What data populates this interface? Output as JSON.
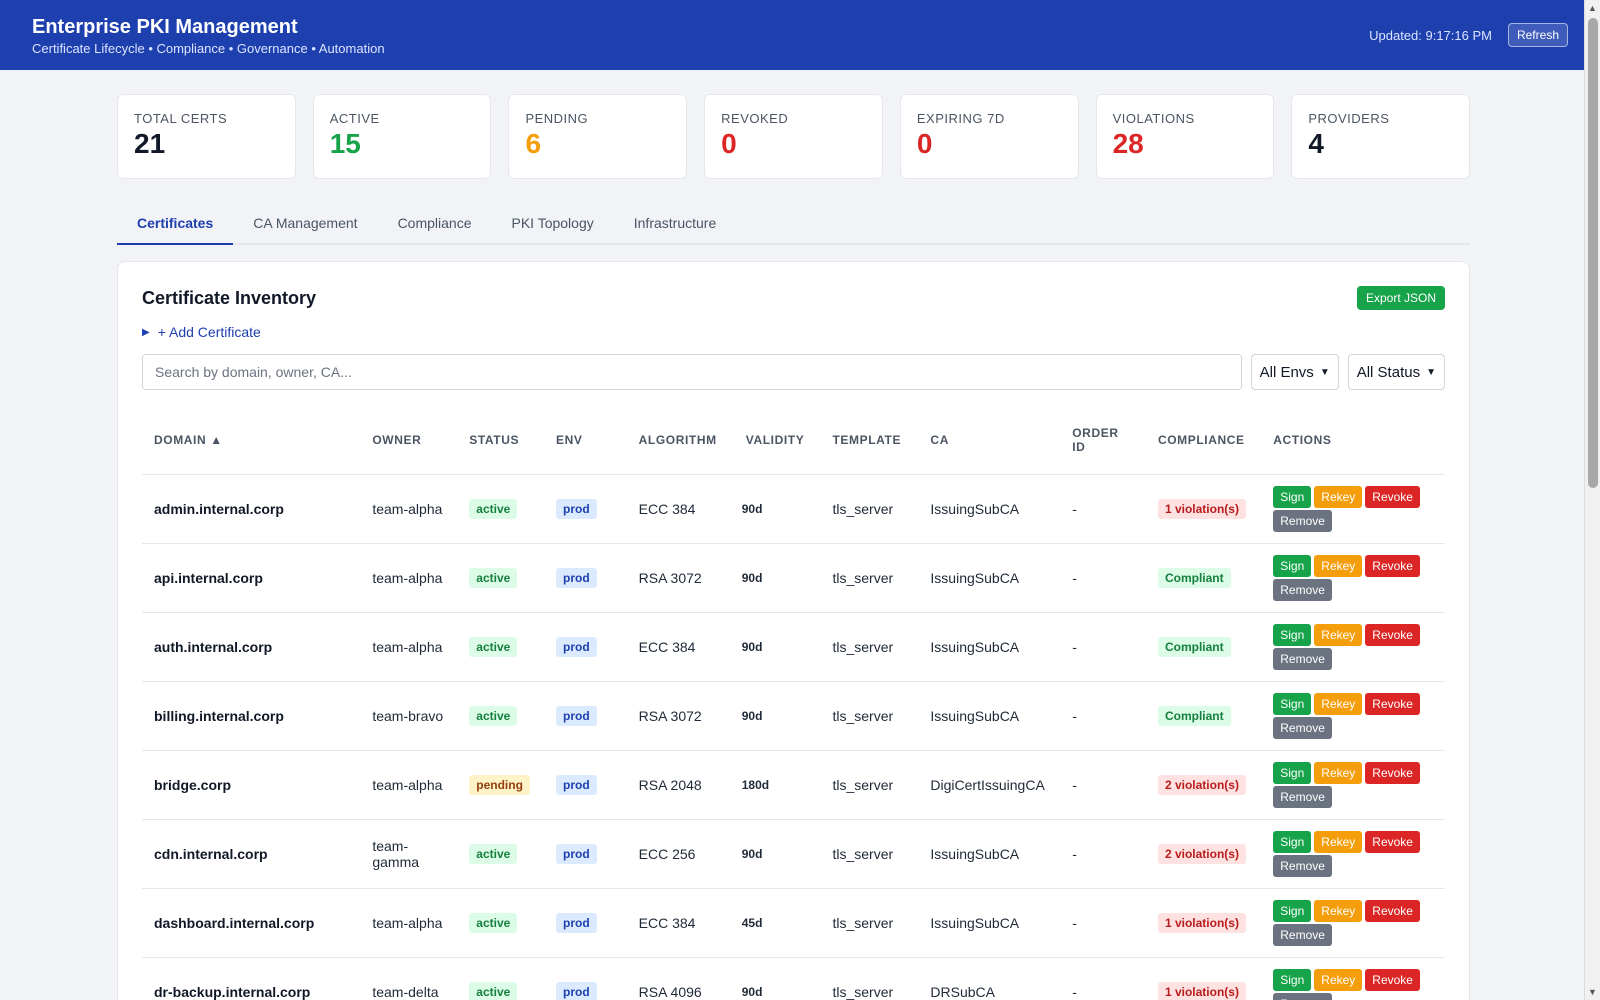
{
  "header": {
    "title": "Enterprise PKI Management",
    "subtitle": "Certificate Lifecycle • Compliance • Governance • Automation",
    "updated": "Updated: 9:17:16 PM",
    "refresh_label": "Refresh"
  },
  "stats": [
    {
      "label": "TOTAL CERTS",
      "value": "21",
      "color": "#111827"
    },
    {
      "label": "ACTIVE",
      "value": "15",
      "color": "#16a34a"
    },
    {
      "label": "PENDING",
      "value": "6",
      "color": "#f59e0b"
    },
    {
      "label": "REVOKED",
      "value": "0",
      "color": "#dc2626"
    },
    {
      "label": "EXPIRING 7D",
      "value": "0",
      "color": "#dc2626"
    },
    {
      "label": "VIOLATIONS",
      "value": "28",
      "color": "#dc2626"
    },
    {
      "label": "PROVIDERS",
      "value": "4",
      "color": "#111827"
    }
  ],
  "tabs": [
    {
      "label": "Certificates",
      "active": true
    },
    {
      "label": "CA Management",
      "active": false
    },
    {
      "label": "Compliance",
      "active": false
    },
    {
      "label": "PKI Topology",
      "active": false
    },
    {
      "label": "Infrastructure",
      "active": false
    }
  ],
  "inventory": {
    "title": "Certificate Inventory",
    "export_label": "Export JSON",
    "add_label": "+ Add Certificate",
    "search_placeholder": "Search by domain, owner, CA...",
    "env_filter": "All Envs",
    "status_filter": "All Status"
  },
  "table": {
    "columns": [
      "DOMAIN ▲",
      "OWNER",
      "STATUS",
      "ENV",
      "ALGORITHM",
      "VALIDITY",
      "TEMPLATE",
      "CA",
      "ORDER ID",
      "COMPLIANCE",
      "ACTIONS"
    ],
    "action_labels": [
      "Sign",
      "Rekey",
      "Revoke",
      "Remove"
    ],
    "rows": [
      {
        "domain": "admin.internal.corp",
        "owner": "team-alpha",
        "status": "active",
        "env": "prod",
        "algorithm": "ECC 384",
        "validity": "90d",
        "template": "tls_server",
        "ca": "IssuingSubCA",
        "order_id": "-",
        "compliance": "1 violation(s)"
      },
      {
        "domain": "api.internal.corp",
        "owner": "team-alpha",
        "status": "active",
        "env": "prod",
        "algorithm": "RSA 3072",
        "validity": "90d",
        "template": "tls_server",
        "ca": "IssuingSubCA",
        "order_id": "-",
        "compliance": "Compliant"
      },
      {
        "domain": "auth.internal.corp",
        "owner": "team-alpha",
        "status": "active",
        "env": "prod",
        "algorithm": "ECC 384",
        "validity": "90d",
        "template": "tls_server",
        "ca": "IssuingSubCA",
        "order_id": "-",
        "compliance": "Compliant"
      },
      {
        "domain": "billing.internal.corp",
        "owner": "team-bravo",
        "status": "active",
        "env": "prod",
        "algorithm": "RSA 3072",
        "validity": "90d",
        "template": "tls_server",
        "ca": "IssuingSubCA",
        "order_id": "-",
        "compliance": "Compliant"
      },
      {
        "domain": "bridge.corp",
        "owner": "team-alpha",
        "status": "pending",
        "env": "prod",
        "algorithm": "RSA 2048",
        "validity": "180d",
        "template": "tls_server",
        "ca": "DigiCertIssuingCA",
        "order_id": "-",
        "compliance": "2 violation(s)"
      },
      {
        "domain": "cdn.internal.corp",
        "owner": "team-gamma",
        "status": "active",
        "env": "prod",
        "algorithm": "ECC 256",
        "validity": "90d",
        "template": "tls_server",
        "ca": "IssuingSubCA",
        "order_id": "-",
        "compliance": "2 violation(s)"
      },
      {
        "domain": "dashboard.internal.corp",
        "owner": "team-alpha",
        "status": "active",
        "env": "prod",
        "algorithm": "ECC 384",
        "validity": "45d",
        "template": "tls_server",
        "ca": "IssuingSubCA",
        "order_id": "-",
        "compliance": "1 violation(s)"
      },
      {
        "domain": "dr-backup.internal.corp",
        "owner": "team-delta",
        "status": "active",
        "env": "prod",
        "algorithm": "RSA 4096",
        "validity": "90d",
        "template": "tls_server",
        "ca": "DRSubCA",
        "order_id": "-",
        "compliance": "1 violation(s)"
      }
    ]
  }
}
